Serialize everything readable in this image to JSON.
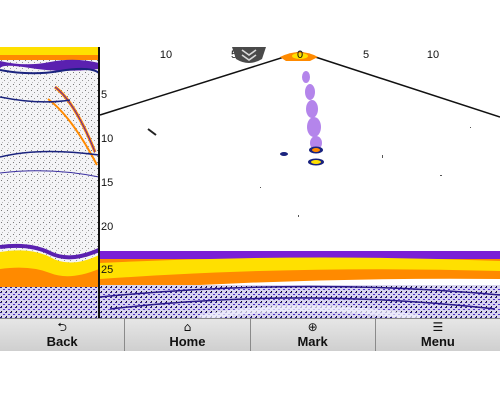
{
  "sonar": {
    "horizontal_scale": [
      "10",
      "5",
      "0",
      "5",
      "10"
    ],
    "depth_scale": [
      "5",
      "10",
      "15",
      "20",
      "25"
    ]
  },
  "handle": {
    "icon": "chevron-down-double-icon"
  },
  "toolbar": {
    "buttons": [
      {
        "label": "Back",
        "icon": "back-arrow-icon",
        "glyph": "⮌"
      },
      {
        "label": "Home",
        "icon": "home-icon",
        "glyph": "⌂"
      },
      {
        "label": "Mark",
        "icon": "crosshair-icon",
        "glyph": "⊕"
      },
      {
        "label": "Menu",
        "icon": "menu-list-icon",
        "glyph": "☰"
      }
    ]
  },
  "colors": {
    "bottom_yellow": "#ffe000",
    "bottom_orange": "#ff8a00",
    "target_purple": "#8a2be2",
    "target_blue": "#1a237e"
  }
}
